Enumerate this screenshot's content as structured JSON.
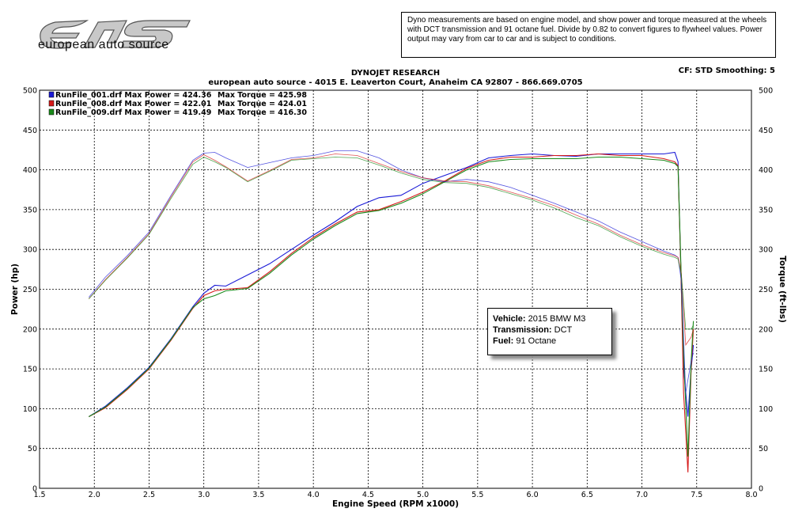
{
  "brand": {
    "logo_text": "european auto source",
    "logo_mark": "eAS"
  },
  "disclaimer": "Dyno measurements are based on engine model, and show power and torque measured at the wheels with DCT transmission and 91 octane fuel. Divide by 0.82 to convert figures to flywheel values. Power output may vary from car to car and is subject to conditions.",
  "header": {
    "title": "DYNOJET RESEARCH",
    "subtitle": "european auto source - 4015 E. Leaverton Court, Anaheim CA 92807 - 866.669.0705",
    "settings": "CF: STD  Smoothing: 5"
  },
  "info": {
    "vehicle_label": "Vehicle:",
    "vehicle": "2015 BMW M3",
    "transmission_label": "Transmission:",
    "transmission": "DCT",
    "fuel_label": "Fuel:",
    "fuel": "91 Octane"
  },
  "colors": {
    "run001": "#1a1ad6",
    "run008": "#d61a1a",
    "run009": "#1a8a1a",
    "grid": "#000000"
  },
  "chart_data": {
    "type": "line",
    "xlabel": "Engine Speed (RPM x1000)",
    "ylabel": "Power (hp)",
    "y2label": "Torque (ft-lbs)",
    "xlim": [
      1.5,
      8.0
    ],
    "ylim": [
      0,
      500
    ],
    "y2lim": [
      0,
      500
    ],
    "grid": true,
    "legend_position": "top-left",
    "x_ticks": [
      "1.5",
      "2.0",
      "2.5",
      "3.0",
      "3.5",
      "4.0",
      "4.5",
      "5.0",
      "5.5",
      "6.0",
      "6.5",
      "7.0",
      "7.5",
      "8.0"
    ],
    "y_ticks": [
      "0",
      "50",
      "100",
      "150",
      "200",
      "250",
      "300",
      "350",
      "400",
      "450",
      "500"
    ],
    "legend": [
      {
        "run": "RunFile_001.drf",
        "max_power_label": "Max Power =",
        "max_power": "424.36",
        "max_torque_label": "Max Torque =",
        "max_torque": "425.98"
      },
      {
        "run": "RunFile_008.drf",
        "max_power_label": "Max Power =",
        "max_power": "422.01",
        "max_torque_label": "Max Torque =",
        "max_torque": "424.01"
      },
      {
        "run": "RunFile_009.drf",
        "max_power_label": "Max Power =",
        "max_power": "419.49",
        "max_torque_label": "Max Torque =",
        "max_torque": "416.30"
      }
    ],
    "series": [
      {
        "run": "RunFile_001.drf",
        "kind": "power",
        "color": "run001",
        "x": [
          1.95,
          2.1,
          2.3,
          2.5,
          2.7,
          2.9,
          3.0,
          3.1,
          3.2,
          3.4,
          3.6,
          3.8,
          4.0,
          4.2,
          4.4,
          4.6,
          4.8,
          5.0,
          5.2,
          5.4,
          5.6,
          5.8,
          6.0,
          6.2,
          6.4,
          6.6,
          6.8,
          7.0,
          7.2,
          7.3,
          7.33,
          7.36,
          7.38,
          7.42,
          7.45,
          7.47
        ],
        "y": [
          90,
          103,
          126,
          152,
          188,
          228,
          245,
          255,
          254,
          268,
          282,
          300,
          318,
          335,
          354,
          365,
          368,
          383,
          393,
          403,
          415,
          418,
          420,
          418,
          417,
          420,
          420,
          420,
          420,
          422,
          410,
          250,
          150,
          90,
          150,
          180
        ]
      },
      {
        "run": "RunFile_008.drf",
        "kind": "power",
        "color": "run008",
        "x": [
          1.95,
          2.1,
          2.3,
          2.5,
          2.7,
          2.9,
          3.0,
          3.1,
          3.2,
          3.4,
          3.6,
          3.8,
          4.0,
          4.2,
          4.4,
          4.6,
          4.8,
          5.0,
          5.2,
          5.4,
          5.6,
          5.8,
          6.0,
          6.2,
          6.4,
          6.6,
          6.8,
          7.0,
          7.2,
          7.3,
          7.33,
          7.36,
          7.38,
          7.42,
          7.45,
          7.47
        ],
        "y": [
          90,
          101,
          124,
          150,
          186,
          226,
          242,
          248,
          250,
          252,
          272,
          295,
          315,
          332,
          347,
          350,
          360,
          372,
          386,
          402,
          412,
          416,
          416,
          418,
          418,
          420,
          418,
          418,
          414,
          410,
          405,
          250,
          120,
          20,
          150,
          200
        ]
      },
      {
        "run": "RunFile_009.drf",
        "kind": "power",
        "color": "run009",
        "x": [
          1.95,
          2.1,
          2.3,
          2.5,
          2.7,
          2.9,
          3.0,
          3.1,
          3.2,
          3.4,
          3.6,
          3.8,
          4.0,
          4.2,
          4.4,
          4.6,
          4.8,
          5.0,
          5.2,
          5.4,
          5.6,
          5.8,
          6.0,
          6.2,
          6.4,
          6.6,
          6.8,
          7.0,
          7.2,
          7.3,
          7.33,
          7.36,
          7.38,
          7.42,
          7.45,
          7.47
        ],
        "y": [
          90,
          102,
          125,
          151,
          187,
          227,
          238,
          242,
          248,
          251,
          270,
          293,
          313,
          330,
          345,
          349,
          358,
          370,
          385,
          400,
          410,
          413,
          414,
          414,
          414,
          416,
          416,
          414,
          412,
          408,
          404,
          260,
          170,
          40,
          160,
          210
        ]
      },
      {
        "run": "RunFile_001.drf",
        "kind": "torque",
        "color": "run001",
        "x": [
          1.95,
          2.1,
          2.3,
          2.5,
          2.7,
          2.9,
          3.0,
          3.1,
          3.2,
          3.4,
          3.6,
          3.8,
          4.0,
          4.2,
          4.4,
          4.6,
          4.8,
          5.0,
          5.2,
          5.4,
          5.6,
          5.8,
          6.0,
          6.2,
          6.4,
          6.6,
          6.8,
          7.0,
          7.2,
          7.3,
          7.33,
          7.36,
          7.4,
          7.45,
          7.47
        ],
        "y": [
          240,
          265,
          292,
          322,
          368,
          412,
          421,
          422,
          415,
          403,
          409,
          415,
          418,
          424,
          424,
          415,
          400,
          390,
          385,
          388,
          385,
          378,
          368,
          358,
          347,
          336,
          322,
          310,
          298,
          293,
          290,
          260,
          120,
          160,
          170
        ]
      },
      {
        "run": "RunFile_008.drf",
        "kind": "torque",
        "color": "run008",
        "x": [
          1.95,
          2.1,
          2.3,
          2.5,
          2.7,
          2.9,
          3.0,
          3.1,
          3.2,
          3.4,
          3.6,
          3.8,
          4.0,
          4.2,
          4.4,
          4.6,
          4.8,
          5.0,
          5.2,
          5.4,
          5.6,
          5.8,
          6.0,
          6.2,
          6.4,
          6.6,
          6.8,
          7.0,
          7.2,
          7.3,
          7.33,
          7.36,
          7.4,
          7.45,
          7.47
        ],
        "y": [
          238,
          262,
          290,
          320,
          366,
          410,
          419,
          412,
          404,
          386,
          399,
          413,
          415,
          420,
          418,
          408,
          398,
          390,
          386,
          385,
          380,
          372,
          364,
          355,
          343,
          332,
          318,
          306,
          296,
          292,
          290,
          270,
          180,
          190,
          200
        ]
      },
      {
        "run": "RunFile_009.drf",
        "kind": "torque",
        "color": "run009",
        "x": [
          1.95,
          2.1,
          2.3,
          2.5,
          2.7,
          2.9,
          3.0,
          3.1,
          3.2,
          3.4,
          3.6,
          3.8,
          4.0,
          4.2,
          4.4,
          4.6,
          4.8,
          5.0,
          5.2,
          5.4,
          5.6,
          5.8,
          6.0,
          6.2,
          6.4,
          6.6,
          6.8,
          7.0,
          7.2,
          7.3,
          7.33,
          7.36,
          7.4,
          7.45,
          7.47
        ],
        "y": [
          238,
          261,
          289,
          319,
          364,
          407,
          416,
          410,
          403,
          385,
          398,
          412,
          414,
          416,
          415,
          406,
          396,
          388,
          384,
          383,
          378,
          370,
          362,
          352,
          340,
          330,
          316,
          304,
          294,
          290,
          288,
          268,
          200,
          200,
          205
        ]
      }
    ]
  }
}
